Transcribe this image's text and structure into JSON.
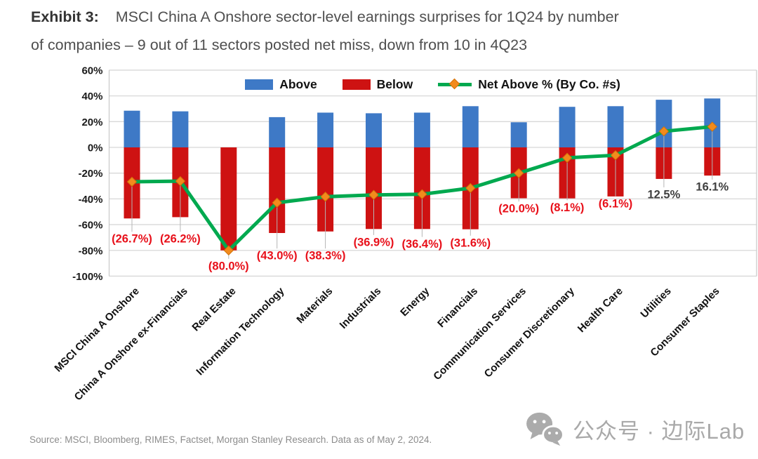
{
  "title": {
    "prefix": "Exhibit 3:",
    "line1": "MSCI China A Onshore sector-level earnings surprises for 1Q24 by number",
    "line2": "of companies – 9 out of 11 sectors posted net miss, down from 10 in 4Q23"
  },
  "legend": {
    "above": "Above",
    "below": "Below",
    "net": "Net Above % (By Co. #s)"
  },
  "source": "Source: MSCI, Bloomberg, RIMES, Factset, Morgan Stanley Research. Data as of May 2, 2024.",
  "watermark": {
    "text": "公众号 · 边际Lab"
  },
  "colors": {
    "above_blue": "#3E79C6",
    "below_red": "#CE1212",
    "net_green": "#00A94F",
    "marker_orange": "#F28B1D",
    "marker_edge": "#D2720A",
    "miss_label_red": "#E8101A",
    "beat_label_gray": "#3F3F3F",
    "grid_gray": "#D8D8D8",
    "axis_border_gray": "#C8C8C8",
    "leader_gray": "#B5B5B5",
    "tick_text": "#1A1A1A"
  },
  "chart_data": {
    "type": "bar+line combo (diverging bars with net % line)",
    "title": "",
    "xlabel": "",
    "ylabel": "",
    "ylim": [
      -100,
      60
    ],
    "ytick_step": 20,
    "grid": true,
    "legend_position": "top-center",
    "yticks": [
      "60%",
      "40%",
      "20%",
      "0%",
      "-20%",
      "-40%",
      "-60%",
      "-80%",
      "-100%"
    ],
    "categories": [
      "MSCI China A Onshore",
      "China A Onshore ex-Financials",
      "Real Estate",
      "Information Technology",
      "Materials",
      "Industrials",
      "Energy",
      "Financials",
      "Communication Services",
      "Consumer Discretionary",
      "Health Care",
      "Utilities",
      "Consumer Staples"
    ],
    "series": [
      {
        "name": "Above",
        "type": "bar",
        "color": "#3E79C6",
        "values": [
          28.5,
          28,
          0,
          23.5,
          27,
          26.5,
          27,
          32,
          19.5,
          31.5,
          32,
          37,
          38
        ]
      },
      {
        "name": "Below",
        "type": "bar",
        "color": "#CE1212",
        "values": [
          -55.2,
          -54.2,
          -80,
          -66.5,
          -65.3,
          -63.4,
          -63.4,
          -63.6,
          -39.5,
          -39.6,
          -38.1,
          -24.5,
          -21.9
        ]
      },
      {
        "name": "Net Above % (By Co. #s)",
        "type": "line",
        "color": "#00A94F",
        "marker": "diamond",
        "marker_color": "#F28B1D",
        "values": [
          -26.7,
          -26.2,
          -80.0,
          -43.0,
          -38.3,
          -36.9,
          -36.4,
          -31.6,
          -20.0,
          -8.1,
          -6.1,
          12.5,
          16.1
        ]
      }
    ],
    "point_labels": [
      {
        "text": "(26.7%)",
        "y": -71,
        "miss": true
      },
      {
        "text": "(26.2%)",
        "y": -71,
        "miss": true
      },
      {
        "text": "(80.0%)",
        "y": -92,
        "miss": true
      },
      {
        "text": "(43.0%)",
        "y": -84,
        "miss": true
      },
      {
        "text": "(38.3%)",
        "y": -84,
        "miss": true
      },
      {
        "text": "(36.9%)",
        "y": -73.5,
        "miss": true
      },
      {
        "text": "(36.4%)",
        "y": -75,
        "miss": true
      },
      {
        "text": "(31.6%)",
        "y": -74,
        "miss": true
      },
      {
        "text": "(20.0%)",
        "y": -47.5,
        "miss": true
      },
      {
        "text": "(8.1%)",
        "y": -46.5,
        "miss": true
      },
      {
        "text": "(6.1%)",
        "y": -43.5,
        "miss": true
      },
      {
        "text": "12.5%",
        "y": -36.5,
        "miss": false
      },
      {
        "text": "16.1%",
        "y": -30.5,
        "miss": false
      }
    ]
  }
}
